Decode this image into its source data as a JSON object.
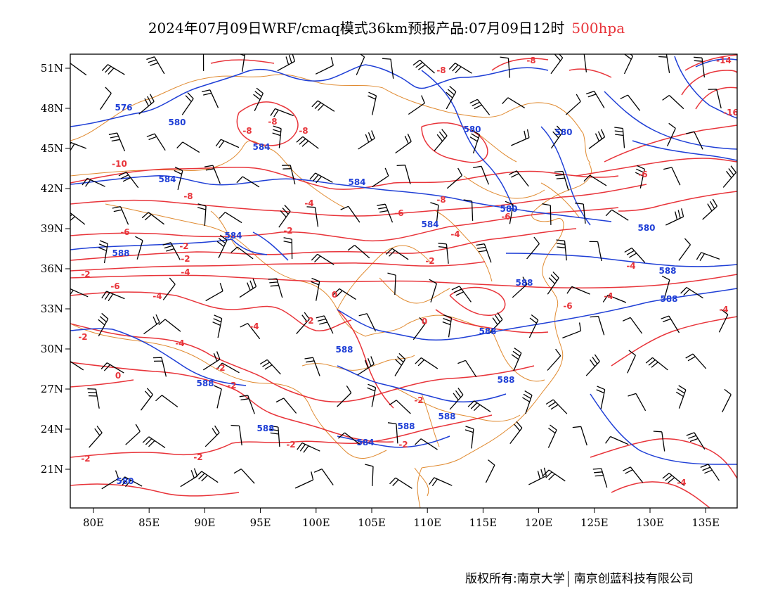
{
  "header": {
    "title": "2024年07月09日WRF/cmaq模式36km预报产品:07月09日12时",
    "level": "500hpa"
  },
  "footer": {
    "copyright": "版权所有:南京大学",
    "company": "南京创蓝科技有限公司"
  },
  "map": {
    "lon_range": [
      78,
      138
    ],
    "lat_range": [
      18,
      52
    ],
    "x_ticks": [
      "80E",
      "85E",
      "90E",
      "95E",
      "100E",
      "105E",
      "110E",
      "115E",
      "120E",
      "125E",
      "130E",
      "135E"
    ],
    "y_ticks": [
      "51N",
      "48N",
      "45N",
      "42N",
      "39N",
      "36N",
      "33N",
      "30N",
      "27N",
      "24N",
      "21N"
    ],
    "colors": {
      "geopotential": "#1f3fd6",
      "temperature": "#e8343a",
      "boundaries": "#e08a30",
      "wind_barbs": "#000000"
    },
    "geopotential_labels": [
      "576",
      "580",
      "580",
      "580",
      "584",
      "584",
      "584",
      "584",
      "580",
      "580",
      "584",
      "588",
      "588",
      "588",
      "588",
      "588",
      "588",
      "588",
      "588",
      "588",
      "588",
      "588",
      "584",
      "580"
    ],
    "temperature_labels": [
      "-8",
      "-8",
      "-8",
      "-8",
      "-10",
      "-14",
      "-16",
      "-8",
      "-6",
      "-8",
      "-8",
      "-6",
      "-4",
      "-2",
      "-6",
      "-4",
      "-2",
      "-6",
      "-2",
      "-4",
      "-4",
      "-6",
      "-2",
      "0",
      "0",
      "-2",
      "-4",
      "-2",
      "-2",
      "-4",
      "-4",
      "-4",
      "-6",
      "-4",
      "-2",
      "-2",
      "0",
      "-2",
      "-2",
      "-2",
      "-2",
      "-2",
      "-4"
    ]
  }
}
